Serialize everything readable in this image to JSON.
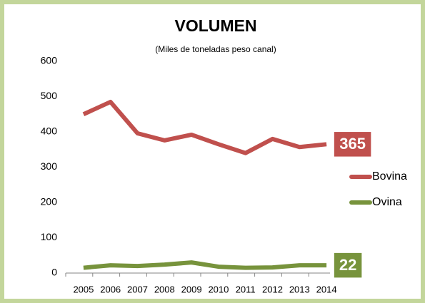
{
  "chart_data": {
    "type": "line",
    "title": "VOLUMEN",
    "subtitle": "(Miles de toneladas peso canal)",
    "categories": [
      "2005",
      "2006",
      "2007",
      "2008",
      "2009",
      "2010",
      "2011",
      "2012",
      "2013",
      "2014"
    ],
    "series": [
      {
        "name": "Bovina",
        "color": "#c0504d",
        "values": [
          450,
          485,
          396,
          376,
          392,
          365,
          340,
          380,
          357,
          365
        ]
      },
      {
        "name": "Ovina",
        "color": "#77933c",
        "values": [
          15,
          22,
          20,
          24,
          30,
          18,
          15,
          16,
          22,
          22
        ]
      }
    ],
    "ylim": [
      0,
      600
    ],
    "yticks": [
      0,
      100,
      200,
      300,
      400,
      500,
      600
    ],
    "grid": false,
    "legend": "right"
  }
}
